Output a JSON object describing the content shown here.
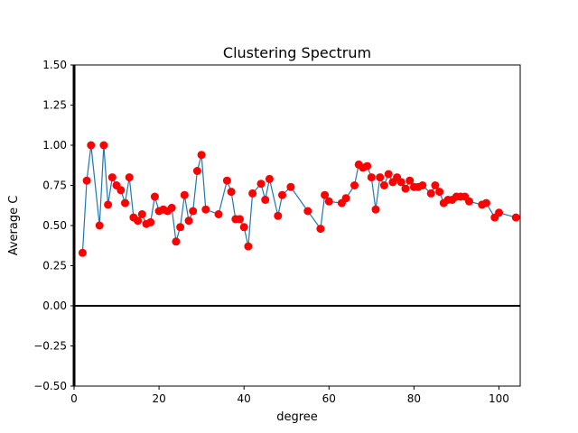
{
  "chart_data": {
    "type": "scatter",
    "title": "Clustering Spectrum",
    "xlabel": "degree",
    "ylabel": "Average C",
    "xlim": [
      0,
      105
    ],
    "ylim": [
      -0.5,
      1.5
    ],
    "xticks": [
      0,
      20,
      40,
      60,
      80,
      100
    ],
    "yticks": [
      -0.5,
      -0.25,
      0.0,
      0.25,
      0.5,
      0.75,
      1.0,
      1.25,
      1.5
    ],
    "xtick_labels": [
      "0",
      "20",
      "40",
      "60",
      "80",
      "100"
    ],
    "ytick_labels": [
      "−0.50",
      "−0.25",
      "0.00",
      "0.25",
      "0.50",
      "0.75",
      "1.00",
      "1.25",
      "1.50"
    ],
    "grid": false,
    "reference_line_y": 0,
    "colors": {
      "line": "#1f77b4",
      "marker": "#ff0000",
      "axis": "#000000"
    },
    "points": [
      [
        2,
        0.33
      ],
      [
        3,
        0.78
      ],
      [
        4,
        1.0
      ],
      [
        6,
        0.5
      ],
      [
        7,
        1.0
      ],
      [
        8,
        0.63
      ],
      [
        9,
        0.8
      ],
      [
        10,
        0.75
      ],
      [
        11,
        0.72
      ],
      [
        12,
        0.64
      ],
      [
        13,
        0.8
      ],
      [
        14,
        0.55
      ],
      [
        15,
        0.53
      ],
      [
        16,
        0.57
      ],
      [
        17,
        0.51
      ],
      [
        18,
        0.52
      ],
      [
        19,
        0.68
      ],
      [
        20,
        0.59
      ],
      [
        21,
        0.6
      ],
      [
        22,
        0.59
      ],
      [
        23,
        0.61
      ],
      [
        24,
        0.4
      ],
      [
        25,
        0.49
      ],
      [
        26,
        0.69
      ],
      [
        27,
        0.53
      ],
      [
        28,
        0.59
      ],
      [
        29,
        0.84
      ],
      [
        30,
        0.94
      ],
      [
        31,
        0.6
      ],
      [
        34,
        0.57
      ],
      [
        36,
        0.78
      ],
      [
        37,
        0.71
      ],
      [
        38,
        0.54
      ],
      [
        39,
        0.54
      ],
      [
        40,
        0.49
      ],
      [
        41,
        0.37
      ],
      [
        42,
        0.7
      ],
      [
        44,
        0.76
      ],
      [
        45,
        0.66
      ],
      [
        46,
        0.79
      ],
      [
        48,
        0.56
      ],
      [
        49,
        0.69
      ],
      [
        51,
        0.74
      ],
      [
        55,
        0.59
      ],
      [
        58,
        0.48
      ],
      [
        59,
        0.69
      ],
      [
        60,
        0.65
      ],
      [
        63,
        0.64
      ],
      [
        64,
        0.67
      ],
      [
        66,
        0.75
      ],
      [
        67,
        0.88
      ],
      [
        68,
        0.86
      ],
      [
        69,
        0.87
      ],
      [
        70,
        0.8
      ],
      [
        71,
        0.6
      ],
      [
        72,
        0.8
      ],
      [
        73,
        0.75
      ],
      [
        74,
        0.82
      ],
      [
        75,
        0.77
      ],
      [
        76,
        0.8
      ],
      [
        77,
        0.77
      ],
      [
        78,
        0.73
      ],
      [
        79,
        0.78
      ],
      [
        80,
        0.74
      ],
      [
        81,
        0.74
      ],
      [
        82,
        0.75
      ],
      [
        84,
        0.7
      ],
      [
        85,
        0.75
      ],
      [
        86,
        0.71
      ],
      [
        87,
        0.64
      ],
      [
        88,
        0.66
      ],
      [
        89,
        0.66
      ],
      [
        90,
        0.68
      ],
      [
        91,
        0.68
      ],
      [
        92,
        0.68
      ],
      [
        93,
        0.65
      ],
      [
        96,
        0.63
      ],
      [
        97,
        0.64
      ],
      [
        99,
        0.55
      ],
      [
        100,
        0.58
      ],
      [
        104,
        0.55
      ]
    ]
  }
}
